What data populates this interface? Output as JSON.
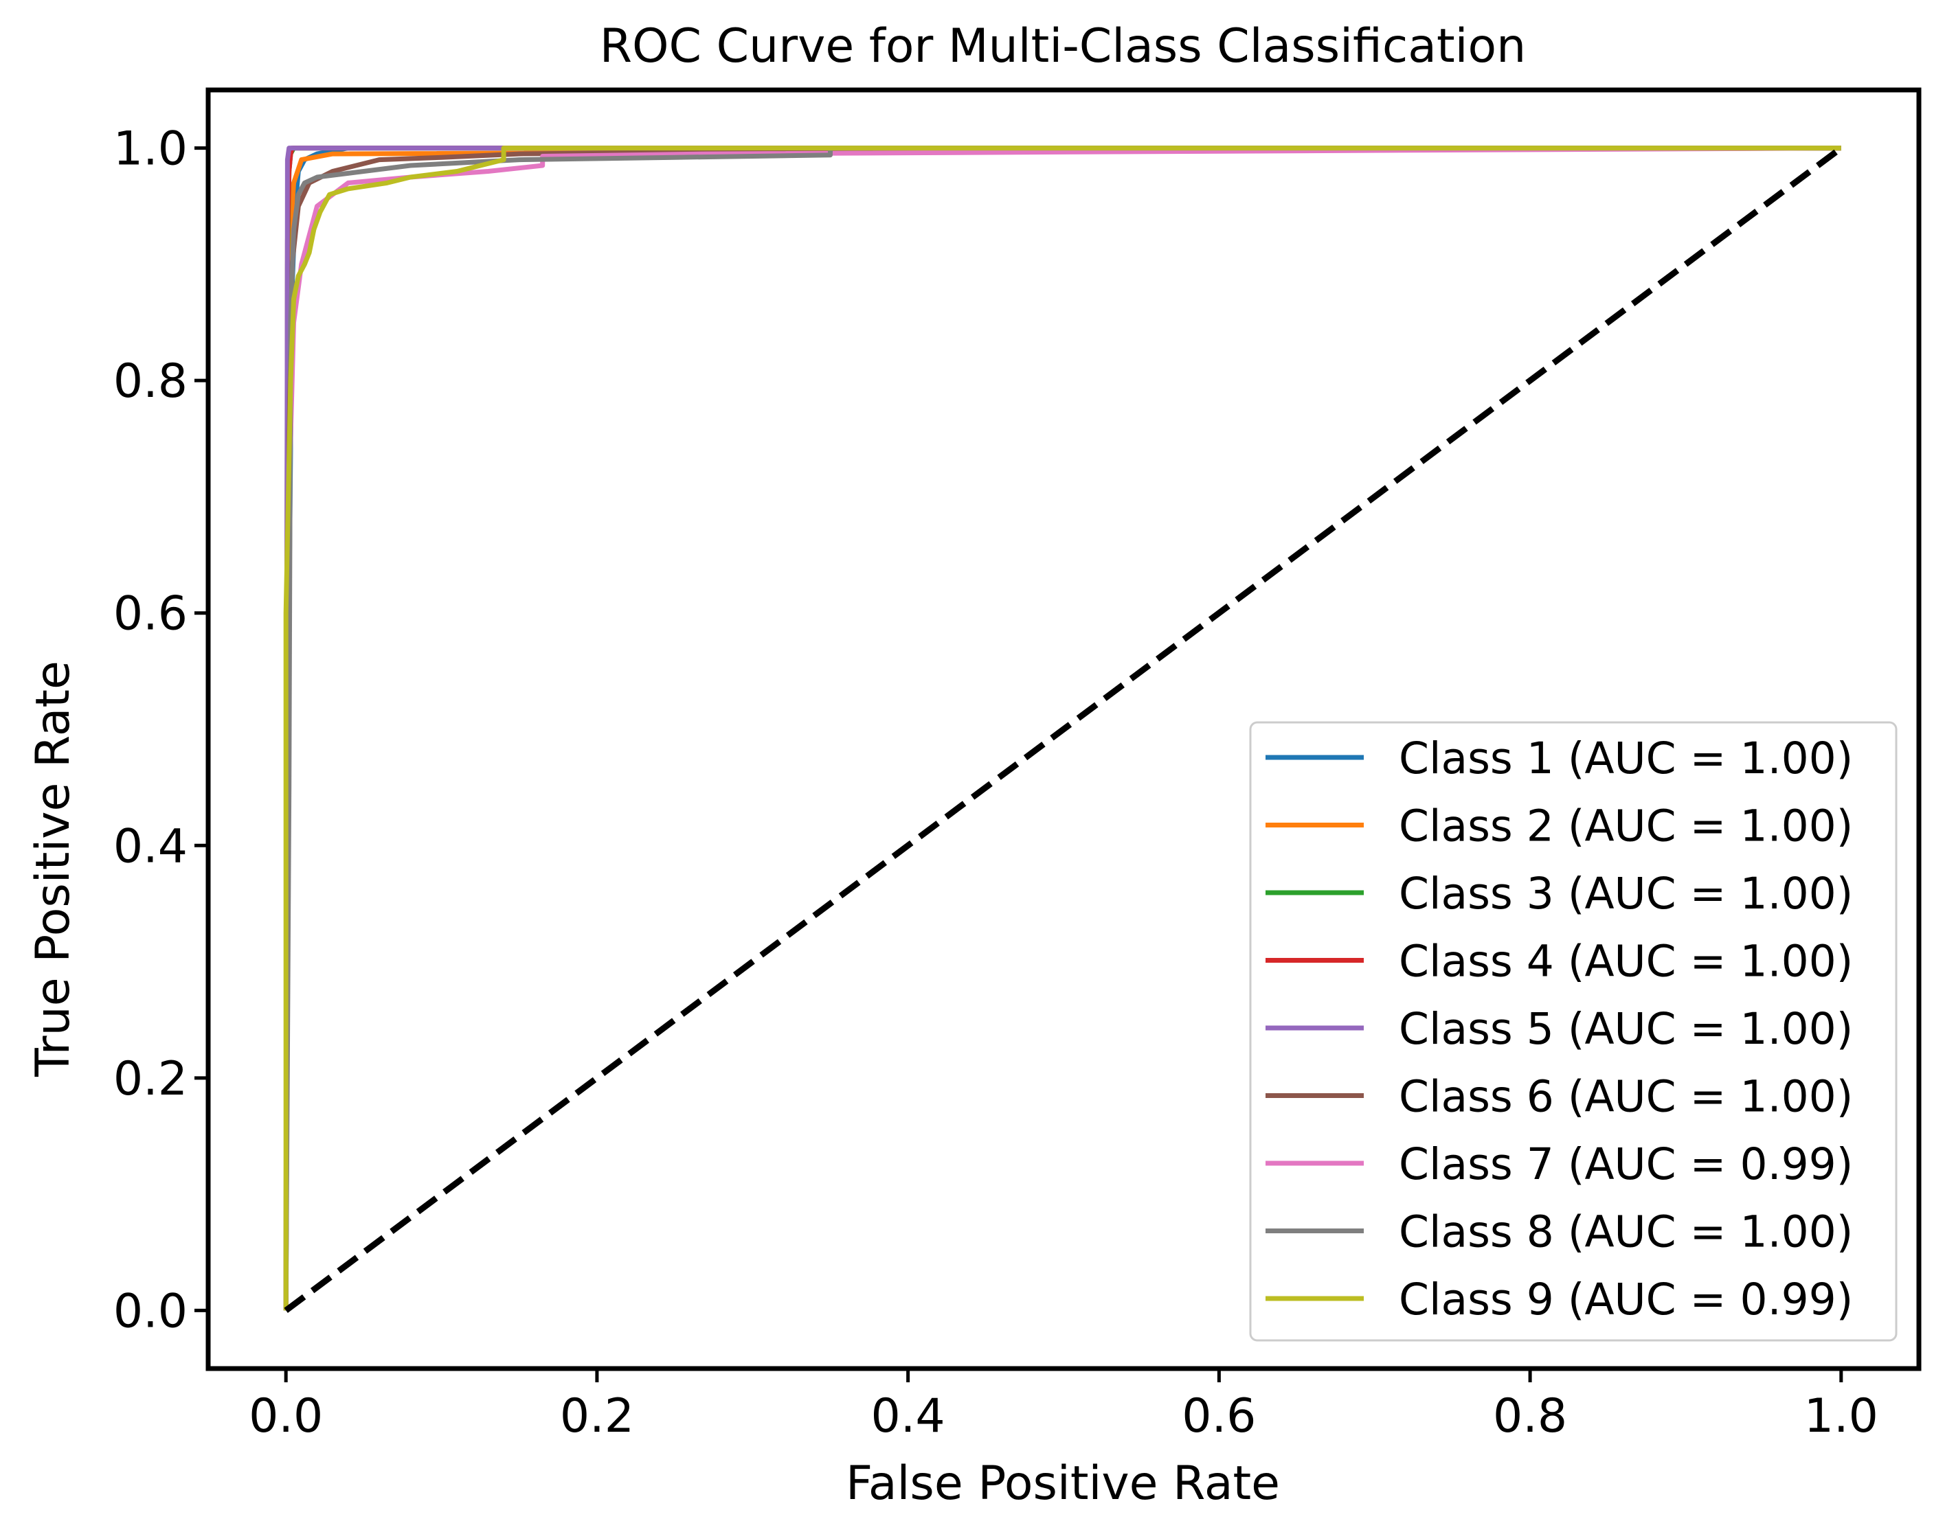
{
  "chart_data": {
    "type": "line",
    "title": "ROC Curve for Multi-Class Classification",
    "xlabel": "False Positive Rate",
    "ylabel": "True Positive Rate",
    "xlim": [
      -0.05,
      1.05
    ],
    "ylim": [
      -0.05,
      1.05
    ],
    "xticks": [
      0.0,
      0.2,
      0.4,
      0.6,
      0.8,
      1.0
    ],
    "xtick_labels": [
      "0.0",
      "0.2",
      "0.4",
      "0.6",
      "0.8",
      "1.0"
    ],
    "yticks": [
      0.0,
      0.2,
      0.4,
      0.6,
      0.8,
      1.0
    ],
    "ytick_labels": [
      "0.0",
      "0.2",
      "0.4",
      "0.6",
      "0.8",
      "1.0"
    ],
    "grid": false,
    "legend_position": "lower-right",
    "reference_line": {
      "name": "chance",
      "x": [
        0,
        1
      ],
      "y": [
        0,
        1
      ],
      "color": "#000000",
      "style": "dashed"
    },
    "series": [
      {
        "name": "Class 1 (AUC = 1.00)",
        "color": "#1f77b4",
        "x": [
          0,
          0.002,
          0.004,
          0.006,
          0.008,
          0.012,
          0.02,
          0.04,
          1.0
        ],
        "y": [
          0,
          0.6,
          0.88,
          0.95,
          0.98,
          0.99,
          0.995,
          1.0,
          1.0
        ]
      },
      {
        "name": "Class 2 (AUC = 1.00)",
        "color": "#ff7f0e",
        "x": [
          0,
          0.002,
          0.003,
          0.005,
          0.01,
          0.03,
          1.0
        ],
        "y": [
          0,
          0.8,
          0.93,
          0.97,
          0.99,
          0.995,
          1.0
        ]
      },
      {
        "name": "Class 3 (AUC = 1.00)",
        "color": "#2ca02c",
        "x": [
          0,
          0.001,
          0.002,
          0.003,
          0.005,
          1.0
        ],
        "y": [
          0,
          0.9,
          0.98,
          0.995,
          1.0,
          1.0
        ]
      },
      {
        "name": "Class 4 (AUC = 1.00)",
        "color": "#d62728",
        "x": [
          0,
          0.001,
          0.002,
          0.003,
          0.004,
          1.0
        ],
        "y": [
          0,
          0.92,
          0.98,
          0.995,
          1.0,
          1.0
        ]
      },
      {
        "name": "Class 5 (AUC = 1.00)",
        "color": "#9467bd",
        "x": [
          0,
          0.001,
          0.002,
          1.0
        ],
        "y": [
          0,
          0.99,
          1.0,
          1.0
        ]
      },
      {
        "name": "Class 6 (AUC = 1.00)",
        "color": "#8c564b",
        "x": [
          0,
          0.002,
          0.004,
          0.008,
          0.015,
          0.03,
          0.06,
          0.1,
          0.15,
          0.3,
          0.413,
          0.413,
          1.0
        ],
        "y": [
          0,
          0.75,
          0.9,
          0.95,
          0.97,
          0.98,
          0.99,
          0.992,
          0.995,
          0.997,
          0.998,
          1.0,
          1.0
        ]
      },
      {
        "name": "Class 7 (AUC = 0.99)",
        "color": "#e377c2",
        "x": [
          0,
          0.002,
          0.005,
          0.01,
          0.02,
          0.04,
          0.08,
          0.13,
          0.165,
          0.165,
          0.27,
          1.0
        ],
        "y": [
          0,
          0.7,
          0.85,
          0.9,
          0.95,
          0.97,
          0.975,
          0.98,
          0.985,
          0.993,
          0.995,
          1.0
        ]
      },
      {
        "name": "Class 8 (AUC = 1.00)",
        "color": "#7f7f7f",
        "x": [
          0,
          0.002,
          0.003,
          0.005,
          0.008,
          0.012,
          0.02,
          0.05,
          0.08,
          0.15,
          0.25,
          0.35,
          0.35,
          1.0
        ],
        "y": [
          0,
          0.45,
          0.85,
          0.93,
          0.96,
          0.97,
          0.975,
          0.98,
          0.985,
          0.99,
          0.992,
          0.994,
          1.0,
          1.0
        ]
      },
      {
        "name": "Class 9 (AUC = 0.99)",
        "color": "#bcbd22",
        "x": [
          0,
          0.0,
          0.003,
          0.005,
          0.008,
          0.012,
          0.015,
          0.018,
          0.022,
          0.028,
          0.04,
          0.065,
          0.08,
          0.11,
          0.14,
          0.14,
          1.0
        ],
        "y": [
          0,
          0.6,
          0.8,
          0.87,
          0.89,
          0.9,
          0.91,
          0.93,
          0.945,
          0.96,
          0.965,
          0.97,
          0.975,
          0.98,
          0.99,
          1.0,
          1.0
        ]
      }
    ]
  }
}
